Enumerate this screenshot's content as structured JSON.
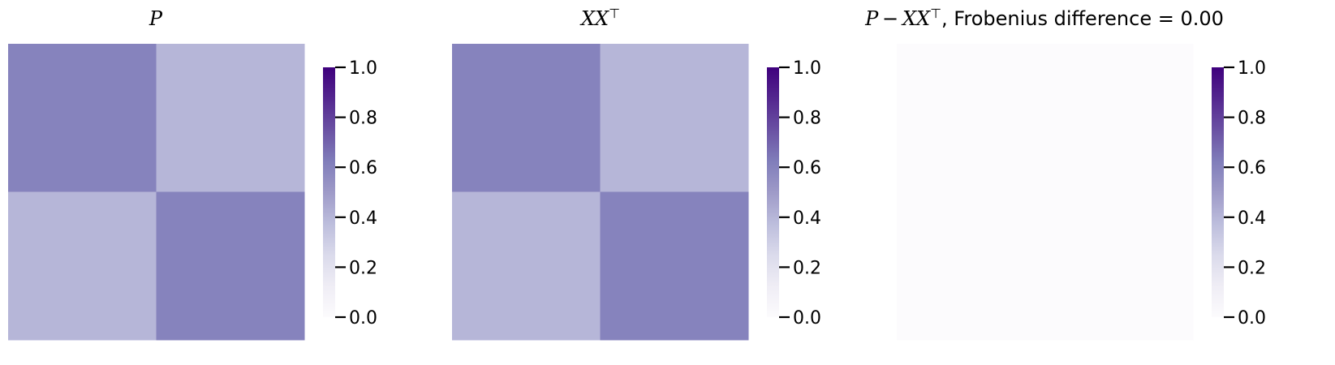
{
  "chart_data": [
    {
      "type": "heatmap",
      "title_parts": [
        {
          "text": "P",
          "math": true
        }
      ],
      "z": [
        [
          0.6,
          0.4
        ],
        [
          0.4,
          0.6
        ]
      ],
      "zlim": [
        0,
        1
      ],
      "colorbar_ticks": [
        "0.0",
        "0.2",
        "0.4",
        "0.6",
        "0.8",
        "1.0"
      ],
      "colormap": "Purples",
      "grid": false,
      "axes_visible": false
    },
    {
      "type": "heatmap",
      "title_parts": [
        {
          "text": "XX",
          "math": true
        },
        {
          "text": "⊤",
          "math": false,
          "sup": true
        }
      ],
      "z": [
        [
          0.6,
          0.4
        ],
        [
          0.4,
          0.6
        ]
      ],
      "zlim": [
        0,
        1
      ],
      "colorbar_ticks": [
        "0.0",
        "0.2",
        "0.4",
        "0.6",
        "0.8",
        "1.0"
      ],
      "colormap": "Purples",
      "grid": false,
      "axes_visible": false
    },
    {
      "type": "heatmap",
      "title_parts": [
        {
          "text": "P",
          "math": true
        },
        {
          "text": " − ",
          "math": false
        },
        {
          "text": "XX",
          "math": true
        },
        {
          "text": "⊤",
          "math": false,
          "sup": true
        },
        {
          "text": ", Frobenius difference = 0.00",
          "math": false
        }
      ],
      "z": [
        [
          0.0,
          0.0
        ],
        [
          0.0,
          0.0
        ]
      ],
      "zlim": [
        0,
        1
      ],
      "colorbar_ticks": [
        "0.0",
        "0.2",
        "0.4",
        "0.6",
        "0.8",
        "1.0"
      ],
      "colormap": "Purples",
      "grid": false,
      "axes_visible": false
    }
  ]
}
